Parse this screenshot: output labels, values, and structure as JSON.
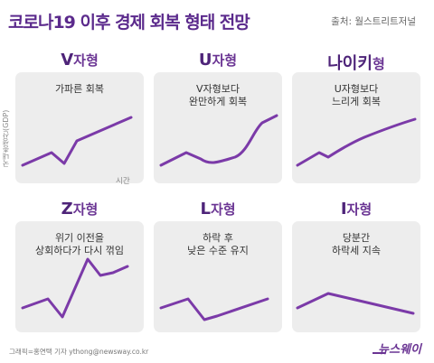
{
  "header": {
    "title": "코로나19 이후 경제 회복 형태 전망",
    "source": "출처: 월스트리트저널"
  },
  "axis": {
    "y_label": "국내총생산(GDP)",
    "x_label": "시간"
  },
  "panels": [
    {
      "shape": "V",
      "title_rest": "자형",
      "desc": [
        "가파른 회복"
      ]
    },
    {
      "shape": "U",
      "title_rest": "자형",
      "desc": [
        "V자형보다",
        "완만하게 회복"
      ]
    },
    {
      "shape": "나이키",
      "title_rest": "형",
      "desc": [
        "U자형보다",
        "느리게 회복"
      ]
    },
    {
      "shape": "Z",
      "title_rest": "자형",
      "desc": [
        "위기 이전을",
        "상회하다가 다시 꺾임"
      ]
    },
    {
      "shape": "L",
      "title_rest": "자형",
      "desc": [
        "하락 후",
        "낮은 수준 유지"
      ]
    },
    {
      "shape": "I",
      "title_rest": "자형",
      "desc": [
        "당분간",
        "하락세 지속"
      ]
    }
  ],
  "footer": {
    "credit": "그래픽=홍연택 기자 ythong@newsway.co.kr",
    "logo": "뉴스웨이"
  },
  "colors": {
    "accent": "#6a3493",
    "title": "#5b2a8c",
    "panel_bg": "#ededed",
    "line": "#7b3aa8"
  }
}
